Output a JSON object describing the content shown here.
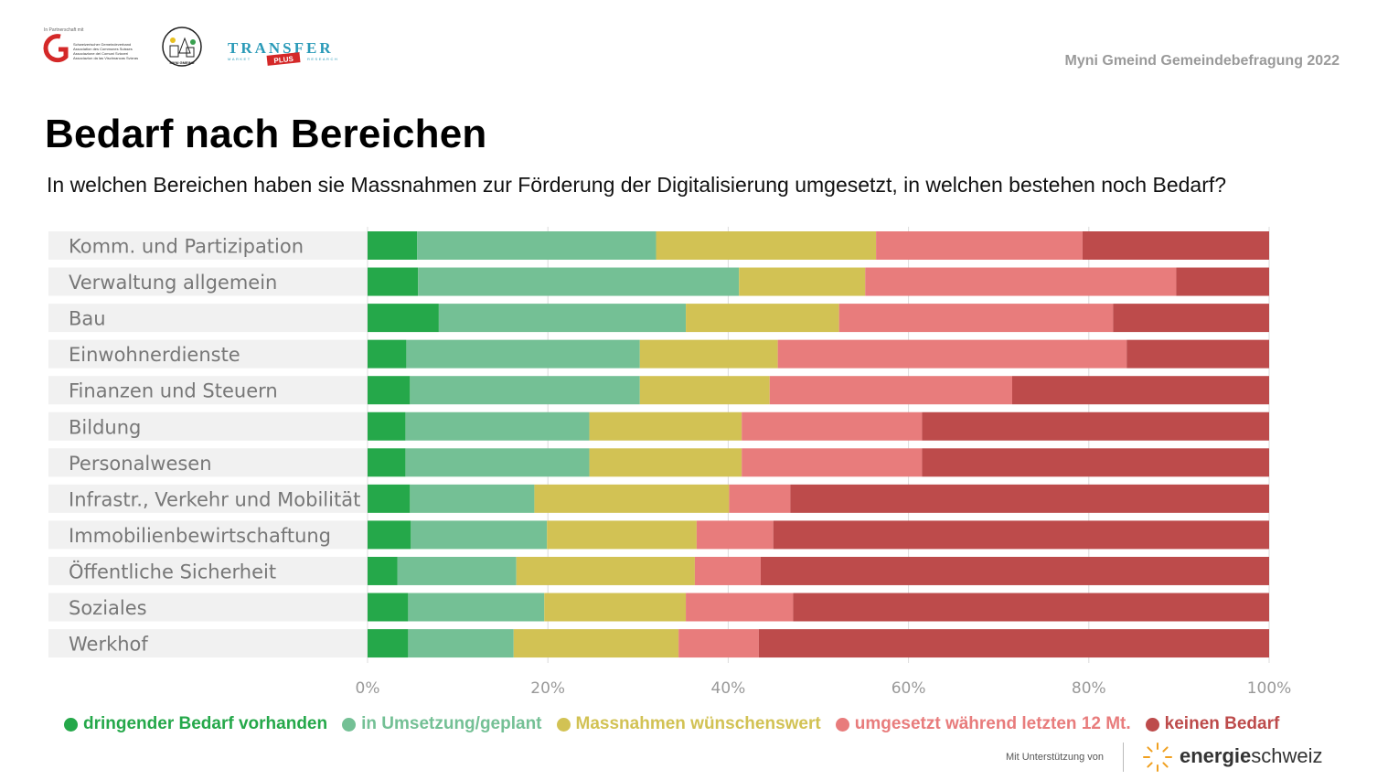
{
  "header": {
    "partner_prefix": "In Partnerschaft mit",
    "sgv_lines": [
      "Schweizerischer Gemeindeverband",
      "Association des Communes Suisses",
      "Associazione dei Comuni Svizzeri",
      "Associaziun da las Vischnancas Svizras"
    ],
    "myni_logo_text": "MYNI GMEIND",
    "transfer_logo": {
      "main": "TRANSFER",
      "left": "MARKET",
      "badge": "PLUS",
      "right": "RESEARCH"
    },
    "survey_label": "Myni Gmeind Gemeindebefragung 2022"
  },
  "page_title": "Bedarf nach Bereichen",
  "subtitle": "In welchen Bereichen haben sie Massnahmen zur Förderung der Digitalisierung umgesetzt, in welchen bestehen noch Bedarf?",
  "chart_data": {
    "type": "bar",
    "orientation": "horizontal",
    "stacked": true,
    "categories": [
      "Komm. und Partizipation",
      "Verwaltung allgemein",
      "Bau",
      "Einwohnerdienste",
      "Finanzen und Steuern",
      "Bildung",
      "Personalwesen",
      "Infrastr., Verkehr und Mobilität",
      "Immobilienbewirtschaftung",
      "Öffentliche Sicherheit",
      "Soziales",
      "Werkhof"
    ],
    "series": [
      {
        "name": "dringender Bedarf vorhanden",
        "color": "#25a84a",
        "values": [
          5.5,
          5.6,
          7.9,
          4.3,
          4.7,
          4.2,
          4.2,
          4.7,
          4.8,
          3.3,
          4.5,
          4.5
        ]
      },
      {
        "name": "in Umsetzung/geplant",
        "color": "#74c095",
        "values": [
          26.5,
          35.6,
          27.4,
          25.9,
          25.5,
          20.4,
          20.4,
          13.8,
          15.1,
          13.2,
          15.1,
          11.7
        ]
      },
      {
        "name": "Massnahmen wünschenswert",
        "color": "#d2c254",
        "values": [
          24.4,
          14.0,
          17.0,
          15.3,
          14.4,
          16.9,
          16.9,
          21.6,
          16.6,
          19.8,
          15.7,
          18.3
        ]
      },
      {
        "name": "umgesetzt während letzten 12 Mt.",
        "color": "#e87c7c",
        "values": [
          22.9,
          34.5,
          30.4,
          38.7,
          26.9,
          20.0,
          20.0,
          6.8,
          8.5,
          7.3,
          11.9,
          8.9
        ]
      },
      {
        "name": "keinen Bedarf",
        "color": "#bd4b4b",
        "values": [
          20.7,
          10.3,
          17.3,
          15.8,
          28.5,
          38.5,
          38.5,
          53.1,
          55.0,
          56.4,
          52.8,
          56.6
        ]
      }
    ],
    "x_ticks": [
      "0%",
      "20%",
      "40%",
      "60%",
      "80%",
      "100%"
    ],
    "xlim": [
      0,
      100
    ],
    "grid": true,
    "legend_position": "bottom"
  },
  "footer": {
    "support_text": "Mit Unterstützung von",
    "brand_bold": "energie",
    "brand_regular": "schweiz"
  }
}
